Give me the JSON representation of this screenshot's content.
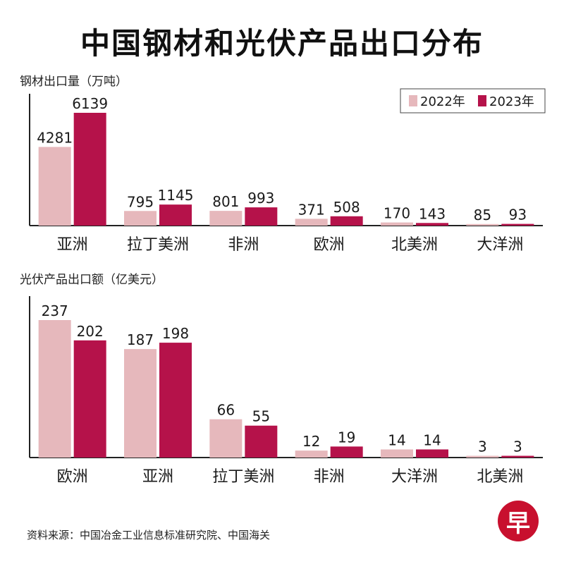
{
  "title": "中国钢材和光伏产品出口分布",
  "legend": {
    "labels": [
      "2022年",
      "2023年"
    ]
  },
  "colors": {
    "y2022": "#e6b8bc",
    "y2023": "#b5124a",
    "axis": "#222222"
  },
  "chart_data": [
    {
      "type": "bar",
      "title": "钢材出口量（万吨）",
      "ylabel": "钢材出口量（万吨）",
      "categories": [
        "亚洲",
        "拉丁美洲",
        "非洲",
        "欧洲",
        "北美洲",
        "大洋洲"
      ],
      "series": [
        {
          "name": "2022年",
          "values": [
            4281,
            795,
            801,
            371,
            170,
            85
          ]
        },
        {
          "name": "2023年",
          "values": [
            6139,
            1145,
            993,
            508,
            143,
            93
          ]
        }
      ],
      "ylim": [
        0,
        6139
      ],
      "legend_position": "top-right"
    },
    {
      "type": "bar",
      "title": "光伏产品出口额（亿美元）",
      "ylabel": "光伏产品出口额（亿美元）",
      "categories": [
        "欧洲",
        "亚洲",
        "拉丁美洲",
        "非洲",
        "大洋洲",
        "北美洲"
      ],
      "series": [
        {
          "name": "2022年",
          "values": [
            237,
            187,
            66,
            12,
            14,
            3
          ]
        },
        {
          "name": "2023年",
          "values": [
            202,
            198,
            55,
            19,
            14,
            3
          ]
        }
      ],
      "ylim": [
        0,
        237
      ]
    }
  ],
  "source_note": "资料来源：中国冶金工业信息标准研究院、中国海关",
  "logo_text": "早"
}
